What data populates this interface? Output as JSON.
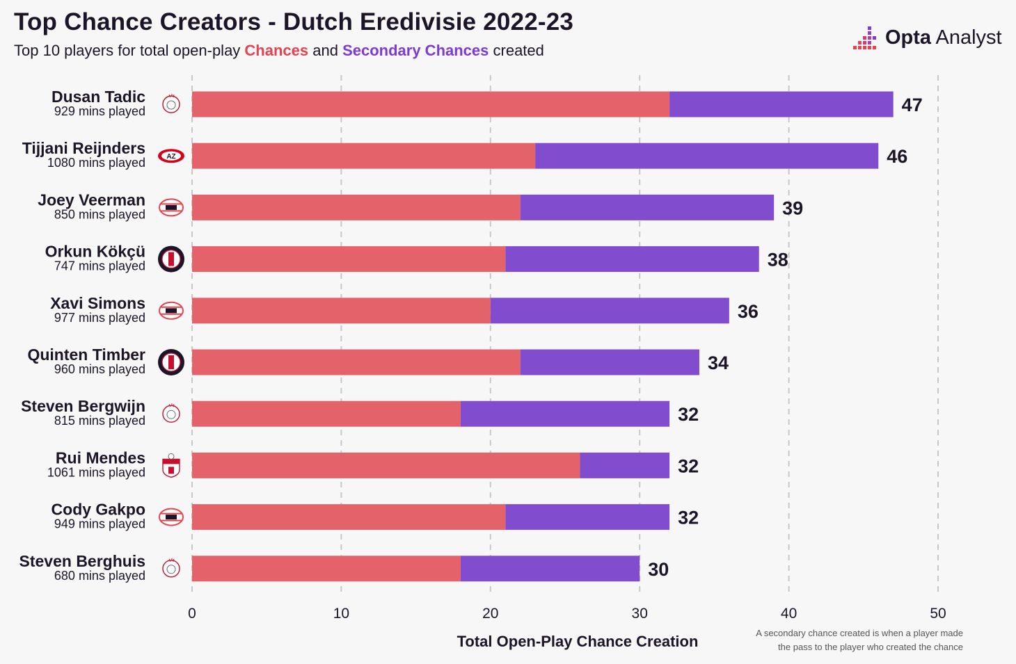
{
  "header": {
    "title": "Top Chance Creators - Dutch Eredivisie 2022-23",
    "subtitle_pre": "Top 10 players for total open-play ",
    "subtitle_chances": "Chances",
    "subtitle_mid": " and ",
    "subtitle_secondary": "Secondary Chances",
    "subtitle_post": " created"
  },
  "logo": {
    "text_bold": "Opta",
    "text_regular": " Analyst",
    "icon": "opta-analyst-logo-icon"
  },
  "footnote": {
    "line1": "A secondary chance created is when a player made",
    "line2": "the pass to the player who created the chance"
  },
  "colors": {
    "chances": "#e4636b",
    "secondary": "#824ccf",
    "highlight_red": "#e4434f",
    "highlight_purple": "#7e3bd1",
    "grid": "#c8c8c8",
    "text": "#1c1528"
  },
  "chart_data": {
    "type": "bar",
    "orientation": "horizontal",
    "stacked": true,
    "xlabel": "Total Open-Play Chance Creation",
    "xlim": [
      0,
      50
    ],
    "xticks": [
      0,
      10,
      20,
      30,
      40,
      50
    ],
    "grid": "vertical dashed",
    "players": [
      {
        "name": "Dusan Tadic",
        "mins": "929 mins played",
        "club_icon": "ajax-crest-icon"
      },
      {
        "name": "Tijjani Reijnders",
        "mins": "1080 mins played",
        "club_icon": "az-crest-icon"
      },
      {
        "name": "Joey Veerman",
        "mins": "850 mins played",
        "club_icon": "psv-crest-icon"
      },
      {
        "name": "Orkun Kökçü",
        "mins": "747 mins played",
        "club_icon": "feyenoord-crest-icon"
      },
      {
        "name": "Xavi Simons",
        "mins": "977 mins played",
        "club_icon": "psv-crest-icon"
      },
      {
        "name": "Quinten Timber",
        "mins": "960 mins played",
        "club_icon": "feyenoord-crest-icon"
      },
      {
        "name": "Steven Bergwijn",
        "mins": "815 mins played",
        "club_icon": "ajax-crest-icon"
      },
      {
        "name": "Rui Mendes",
        "mins": "1061 mins played",
        "club_icon": "fc-emmen-crest-icon"
      },
      {
        "name": "Cody Gakpo",
        "mins": "949 mins played",
        "club_icon": "psv-crest-icon"
      },
      {
        "name": "Steven Berghuis",
        "mins": "680 mins played",
        "club_icon": "ajax-crest-icon"
      }
    ],
    "series": [
      {
        "name": "Chances",
        "values": [
          32,
          23,
          22,
          21,
          20,
          22,
          18,
          26,
          21,
          18
        ]
      },
      {
        "name": "Secondary Chances",
        "values": [
          15,
          23,
          17,
          17,
          16,
          12,
          14,
          6,
          11,
          12
        ]
      }
    ],
    "totals": [
      47,
      46,
      39,
      38,
      36,
      34,
      32,
      32,
      32,
      30
    ]
  }
}
